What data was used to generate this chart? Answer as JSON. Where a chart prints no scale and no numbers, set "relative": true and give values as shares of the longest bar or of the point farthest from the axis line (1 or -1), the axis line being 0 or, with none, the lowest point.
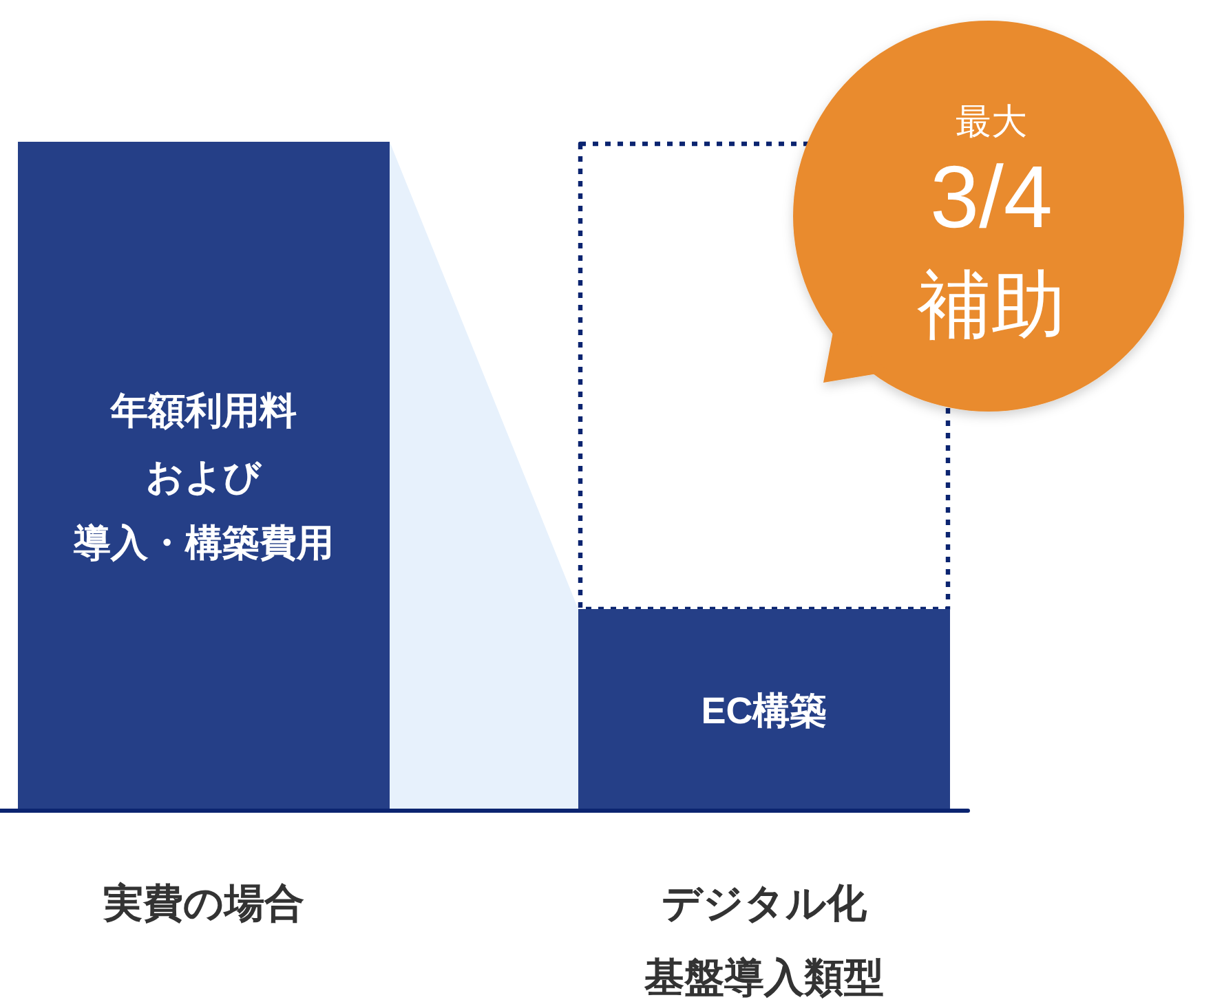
{
  "chart_data": {
    "type": "bar",
    "relative": true,
    "stacked": true,
    "categories": [
      "実費の場合",
      "デジタル化基盤導入類型"
    ],
    "series": [
      {
        "color": "#253f87",
        "values": [
          1,
          0.3
        ]
      },
      {
        "color": "#0b2470",
        "values": [
          null,
          0.7
        ],
        "line_style": "dotted"
      }
    ],
    "annotations": [
      "年額利用料および導入・構築費用",
      "EC構築",
      "最大3/4補助"
    ]
  }
}
